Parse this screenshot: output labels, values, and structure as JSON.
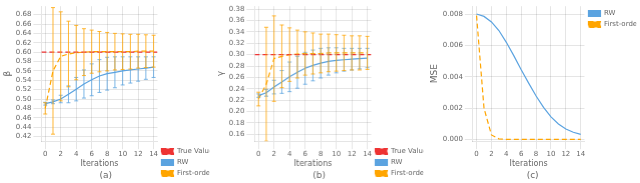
{
  "chart_data": [
    {
      "type": "line",
      "subtitle": "(a)",
      "x_label": "Iterations",
      "y_label": "β",
      "x": [
        0,
        1,
        2,
        3,
        4,
        5,
        6,
        7,
        8,
        9,
        10,
        11,
        12,
        13,
        14
      ],
      "xlim": [
        -0.5,
        14.5
      ],
      "xticks": [
        0,
        2,
        4,
        6,
        8,
        10,
        12,
        14
      ],
      "ylim": [
        0.41,
        0.698
      ],
      "yticks": [
        0.42,
        0.44,
        0.46,
        0.48,
        {
          "value": 0.5,
          "label": "0.50"
        },
        0.52,
        0.54,
        0.56,
        0.58,
        {
          "value": 0.6,
          "label": "0.60"
        },
        0.62,
        0.64,
        0.66,
        0.68
      ],
      "grid": true,
      "legend": "lower right",
      "series": [
        {
          "name": "True Value",
          "type": "hline",
          "value": 0.6,
          "color": "#EE3333",
          "line_style": "dashed"
        },
        {
          "name": "RW",
          "color": "#5BA3E0",
          "line_style": "solid",
          "values": [
            0.49,
            0.494,
            0.5,
            0.51,
            0.521,
            0.532,
            0.541,
            0.549,
            0.554,
            0.557,
            0.56,
            0.562,
            0.564,
            0.566,
            0.568
          ],
          "errors": [
            0.003,
            0.004,
            0.008,
            0.018,
            0.025,
            0.03,
            0.034,
            0.035,
            0.035,
            0.033,
            0.03,
            0.028,
            0.026,
            0.024,
            0.022
          ]
        },
        {
          "name": "First-order",
          "color": "#FFA500",
          "line_style": "dashed",
          "values": [
            0.48,
            0.56,
            0.591,
            0.596,
            0.599,
            0.6,
            0.601,
            0.601,
            0.601,
            0.601,
            0.601,
            0.601,
            0.602,
            0.602,
            0.602
          ],
          "errors": [
            0.012,
            0.135,
            0.095,
            0.07,
            0.058,
            0.05,
            0.046,
            0.043,
            0.041,
            0.039,
            0.038,
            0.037,
            0.036,
            0.035,
            0.034
          ]
        }
      ]
    },
    {
      "type": "line",
      "subtitle": "(b)",
      "x_label": "Iterations",
      "y_label": "γ",
      "x": [
        0,
        1,
        2,
        3,
        4,
        5,
        6,
        7,
        8,
        9,
        10,
        11,
        12,
        13,
        14
      ],
      "xlim": [
        -0.5,
        14.5
      ],
      "xticks": [
        0,
        2,
        4,
        6,
        8,
        10,
        12,
        14
      ],
      "ylim": [
        0.148,
        0.385
      ],
      "yticks": [
        0.16,
        0.18,
        {
          "value": 0.2,
          "label": "0.20"
        },
        0.22,
        0.24,
        0.26,
        0.28,
        {
          "value": 0.3,
          "label": "0.30"
        },
        0.32,
        0.34,
        0.36,
        0.38
      ],
      "grid": true,
      "legend": "lower right",
      "series": [
        {
          "name": "True Value",
          "type": "hline",
          "value": 0.3,
          "color": "#EE3333",
          "line_style": "dashed"
        },
        {
          "name": "RW",
          "color": "#5BA3E0",
          "line_style": "solid",
          "values": [
            0.228,
            0.233,
            0.243,
            0.252,
            0.261,
            0.269,
            0.276,
            0.281,
            0.285,
            0.288,
            0.29,
            0.291,
            0.292,
            0.293,
            0.294
          ],
          "errors": [
            0.003,
            0.006,
            0.012,
            0.02,
            0.026,
            0.028,
            0.028,
            0.027,
            0.026,
            0.024,
            0.022,
            0.02,
            0.019,
            0.018,
            0.017
          ]
        },
        {
          "name": "First-order",
          "color": "#FFA500",
          "line_style": "dashed",
          "values": [
            0.222,
            0.248,
            0.293,
            0.297,
            0.3,
            0.301,
            0.302,
            0.302,
            0.302,
            0.303,
            0.303,
            0.303,
            0.303,
            0.303,
            0.303
          ],
          "errors": [
            0.012,
            0.1,
            0.075,
            0.055,
            0.047,
            0.042,
            0.038,
            0.036,
            0.034,
            0.033,
            0.032,
            0.031,
            0.03,
            0.03,
            0.029
          ]
        }
      ]
    },
    {
      "type": "line",
      "subtitle": "(c)",
      "x_label": "Iterations",
      "y_label": "MSE",
      "x": [
        0,
        1,
        2,
        3,
        4,
        5,
        6,
        7,
        8,
        9,
        10,
        11,
        12,
        13,
        14
      ],
      "xlim": [
        -0.5,
        14.5
      ],
      "xticks": [
        0,
        2,
        4,
        6,
        8,
        10,
        12,
        14
      ],
      "ylim": [
        -0.0001,
        0.0085
      ],
      "yticks": [
        {
          "value": 0,
          "label": "0.000"
        },
        0.002,
        0.004,
        0.006,
        0.008
      ],
      "grid": true,
      "legend": "upper right",
      "series": [
        {
          "name": "RW",
          "color": "#5BA3E0",
          "line_style": "solid",
          "values": [
            0.008,
            0.00785,
            0.0075,
            0.00695,
            0.0062,
            0.00535,
            0.00445,
            0.0036,
            0.00278,
            0.00205,
            0.00145,
            0.001,
            0.00068,
            0.00047,
            0.00033
          ]
        },
        {
          "name": "First-order",
          "color": "#FFA500",
          "line_style": "dashed",
          "values": [
            0.0079,
            0.002,
            0.0003,
            5e-05,
            2e-05,
            1e-05,
            1e-05,
            1e-05,
            1e-05,
            1e-05,
            1e-05,
            1e-05,
            1e-05,
            1e-05,
            1e-05
          ]
        }
      ]
    }
  ]
}
